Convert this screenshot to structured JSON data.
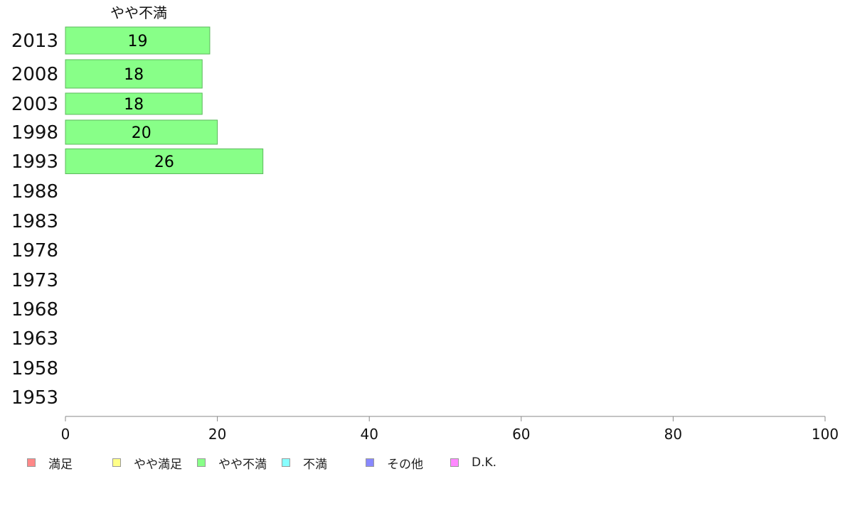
{
  "chart_data": {
    "type": "bar",
    "orientation": "horizontal",
    "column_header": "やや不満",
    "categories": [
      "2013",
      "2008",
      "2003",
      "1998",
      "1993",
      "1988",
      "1983",
      "1978",
      "1973",
      "1968",
      "1963",
      "1958",
      "1953"
    ],
    "series": [
      {
        "name": "やや不満",
        "values": [
          19,
          18,
          18,
          20,
          26,
          null,
          null,
          null,
          null,
          null,
          null,
          null,
          null
        ]
      }
    ],
    "value_labels": [
      "19",
      "18",
      "18",
      "20",
      "26"
    ],
    "xlim": [
      0,
      100
    ],
    "xticks": [
      "0",
      "20",
      "40",
      "60",
      "80",
      "100"
    ],
    "grid": false,
    "legend_position": "bottom",
    "bar_color": "#88ff88",
    "bar_stroke": "#5cb85c"
  },
  "legend": [
    {
      "label": "満足",
      "color": "#ff8888"
    },
    {
      "label": "やや満足",
      "color": "#ffff88"
    },
    {
      "label": "やや不満",
      "color": "#88ff88"
    },
    {
      "label": "不満",
      "color": "#88ffff"
    },
    {
      "label": "その他",
      "color": "#8888ff"
    },
    {
      "label": "D.K.",
      "color": "#ff88ff"
    }
  ]
}
